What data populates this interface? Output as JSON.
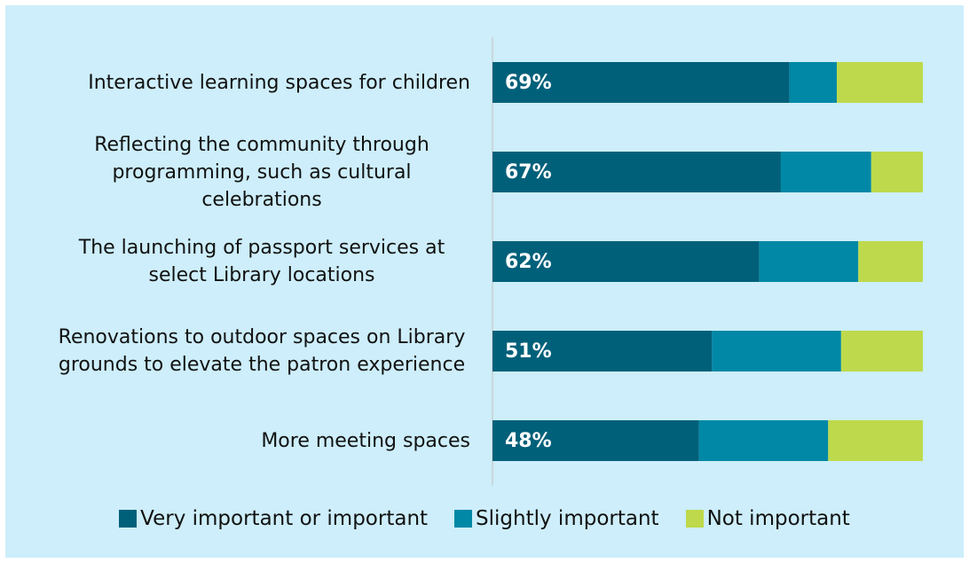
{
  "chart_data": {
    "type": "stacked-bar-horizontal",
    "categories": [
      "Interactive learning spaces for children",
      "Reflecting the community through programming, such as cultural celebrations",
      "The launching of passport services at select Library locations",
      "Renovations to outdoor spaces on Library grounds to elevate the patron experience",
      "More meeting spaces"
    ],
    "series": [
      {
        "name": "Very important or important",
        "color": "#00607a",
        "values": [
          69,
          67,
          62,
          51,
          48
        ],
        "value_labels": [
          "69%",
          "67%",
          "62%",
          "51%",
          "48%"
        ]
      },
      {
        "name": "Slightly important",
        "color": "#0088a6",
        "values": [
          11,
          21,
          23,
          30,
          30
        ]
      },
      {
        "name": "Not important",
        "color": "#bed94b",
        "values": [
          20,
          12,
          15,
          19,
          22
        ]
      }
    ],
    "xlim": [
      0,
      100
    ]
  }
}
